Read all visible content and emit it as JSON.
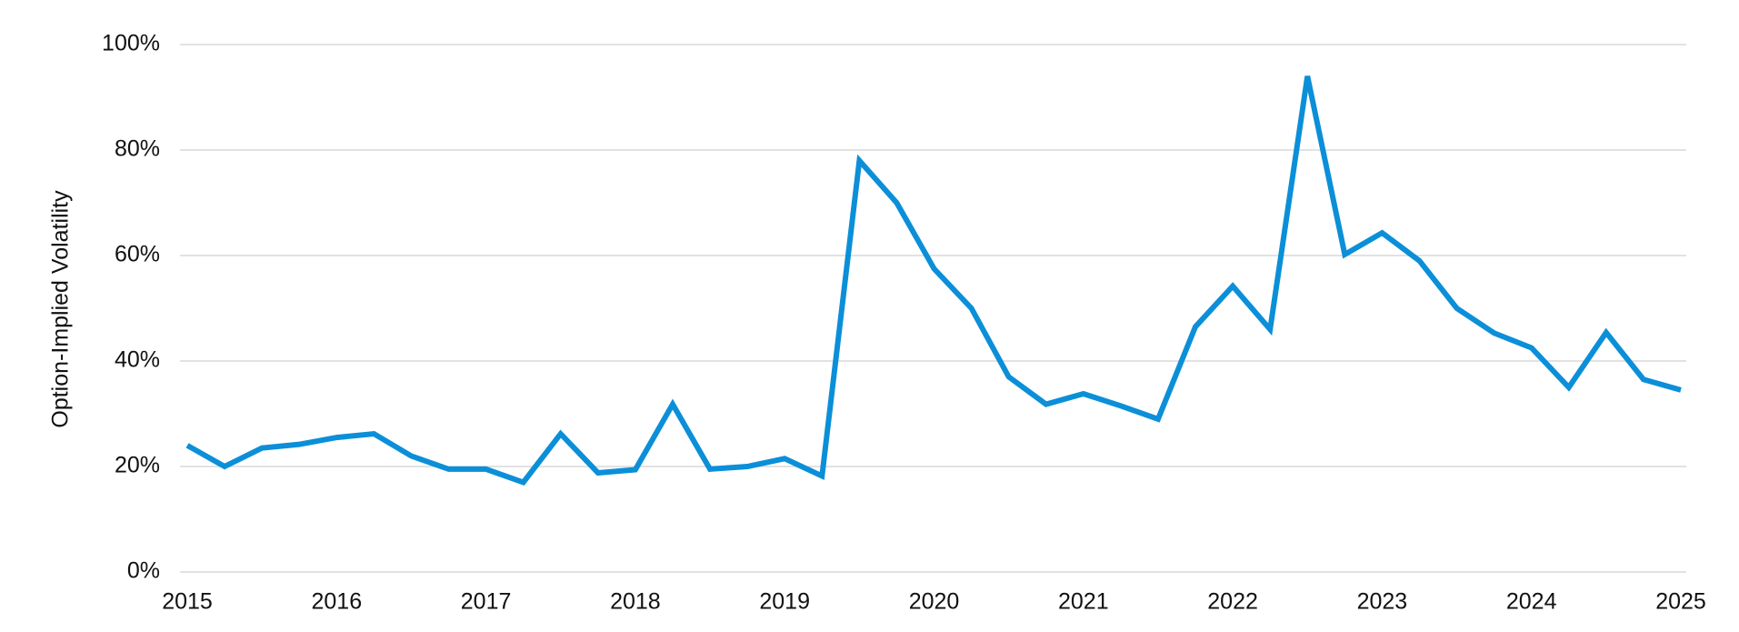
{
  "chart_data": {
    "type": "line",
    "y_label": "Option-Implied Volatility",
    "x": [
      2015,
      2015.25,
      2015.5,
      2015.75,
      2016,
      2016.25,
      2016.5,
      2016.75,
      2017,
      2017.25,
      2017.5,
      2017.75,
      2018,
      2018.25,
      2018.5,
      2018.75,
      2019,
      2019.25,
      2019.5,
      2019.75,
      2020,
      2020.25,
      2020.5,
      2020.75,
      2021,
      2021.25,
      2021.5,
      2021.75,
      2022,
      2022.25,
      2022.5,
      2022.75,
      2023,
      2023.25,
      2023.5,
      2023.75,
      2024,
      2024.25,
      2024.5,
      2024.75,
      2025
    ],
    "series": [
      {
        "name": "Option-Implied Volatility",
        "color": "#0b8fd8",
        "values": [
          24,
          20,
          23.5,
          24.2,
          25.5,
          26.2,
          22,
          19.5,
          19.5,
          17,
          26.2,
          18.8,
          19.4,
          31.8,
          19.5,
          20,
          21.5,
          18.2,
          78,
          70,
          57.5,
          50,
          37,
          31.8,
          33.8,
          31.5,
          29,
          46.5,
          54.2,
          46,
          94,
          60.2,
          64.3,
          59,
          50,
          45.3,
          42.5,
          35,
          45.4,
          36.5,
          34.5
        ]
      }
    ],
    "xlim": [
      2015,
      2025
    ],
    "xticks": [
      2015,
      2016,
      2017,
      2018,
      2019,
      2020,
      2021,
      2022,
      2023,
      2024,
      2025
    ],
    "ylim": [
      0,
      100
    ],
    "yticks": [
      {
        "value": 0,
        "label": "0%"
      },
      {
        "value": 20,
        "label": "20%"
      },
      {
        "value": 40,
        "label": "40%"
      },
      {
        "value": 60,
        "label": "60%"
      },
      {
        "value": 80,
        "label": "80%"
      },
      {
        "value": 100,
        "label": "100%"
      }
    ],
    "grid": true
  }
}
